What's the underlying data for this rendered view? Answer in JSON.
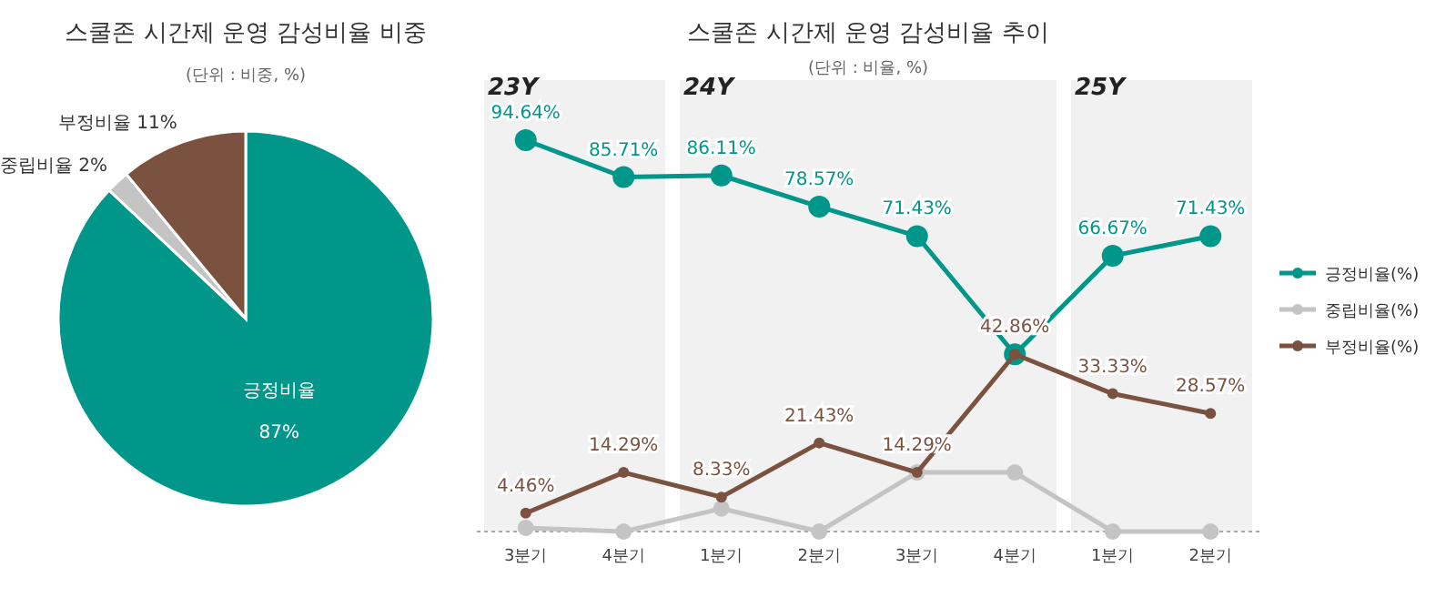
{
  "chart_data": [
    {
      "type": "pie",
      "title": "스쿨존 시간제 운영 감성비율 비중",
      "subtitle": "(단위 : 비중, %)",
      "categories": [
        "긍정비율",
        "중립비율",
        "부정비율"
      ],
      "values": [
        87,
        2,
        11
      ],
      "colors": [
        "#00968a",
        "#c4c4c4",
        "#7b5140"
      ],
      "value_labels": [
        "87%",
        "2%",
        "11%"
      ]
    },
    {
      "type": "line",
      "title": "스쿨존 시간제 운영 감성비율 추이",
      "subtitle": "(단위 : 비율, %)",
      "categories": [
        "3분기",
        "4분기",
        "1분기",
        "2분기",
        "3분기",
        "4분기",
        "1분기",
        "2분기"
      ],
      "annotations": [
        "23Y",
        "24Y",
        "25Y"
      ],
      "legend": "right",
      "marker": "circle",
      "line_style": "solid",
      "series": [
        {
          "name": "긍정비율(%)",
          "color": "#00968a",
          "values": [
            94.64,
            85.71,
            86.11,
            78.57,
            71.43,
            42.86,
            66.67,
            71.43
          ],
          "value_labels": [
            "94.64%",
            "85.71%",
            "86.11%",
            "78.57%",
            "71.43%",
            null,
            "66.67%",
            "71.43%"
          ]
        },
        {
          "name": "중립비율(%)",
          "color": "#c4c4c4",
          "values": [
            0.9,
            0,
            5.56,
            0,
            14.29,
            14.29,
            0,
            0
          ]
        },
        {
          "name": "부정비율(%)",
          "color": "#7b5140",
          "values": [
            4.46,
            14.29,
            8.33,
            21.43,
            14.29,
            42.86,
            33.33,
            28.57
          ],
          "value_labels": [
            "4.46%",
            "14.29%",
            "8.33%",
            "21.43%",
            "14.29%",
            "42.86%",
            "33.33%",
            "28.57%"
          ]
        }
      ]
    }
  ]
}
